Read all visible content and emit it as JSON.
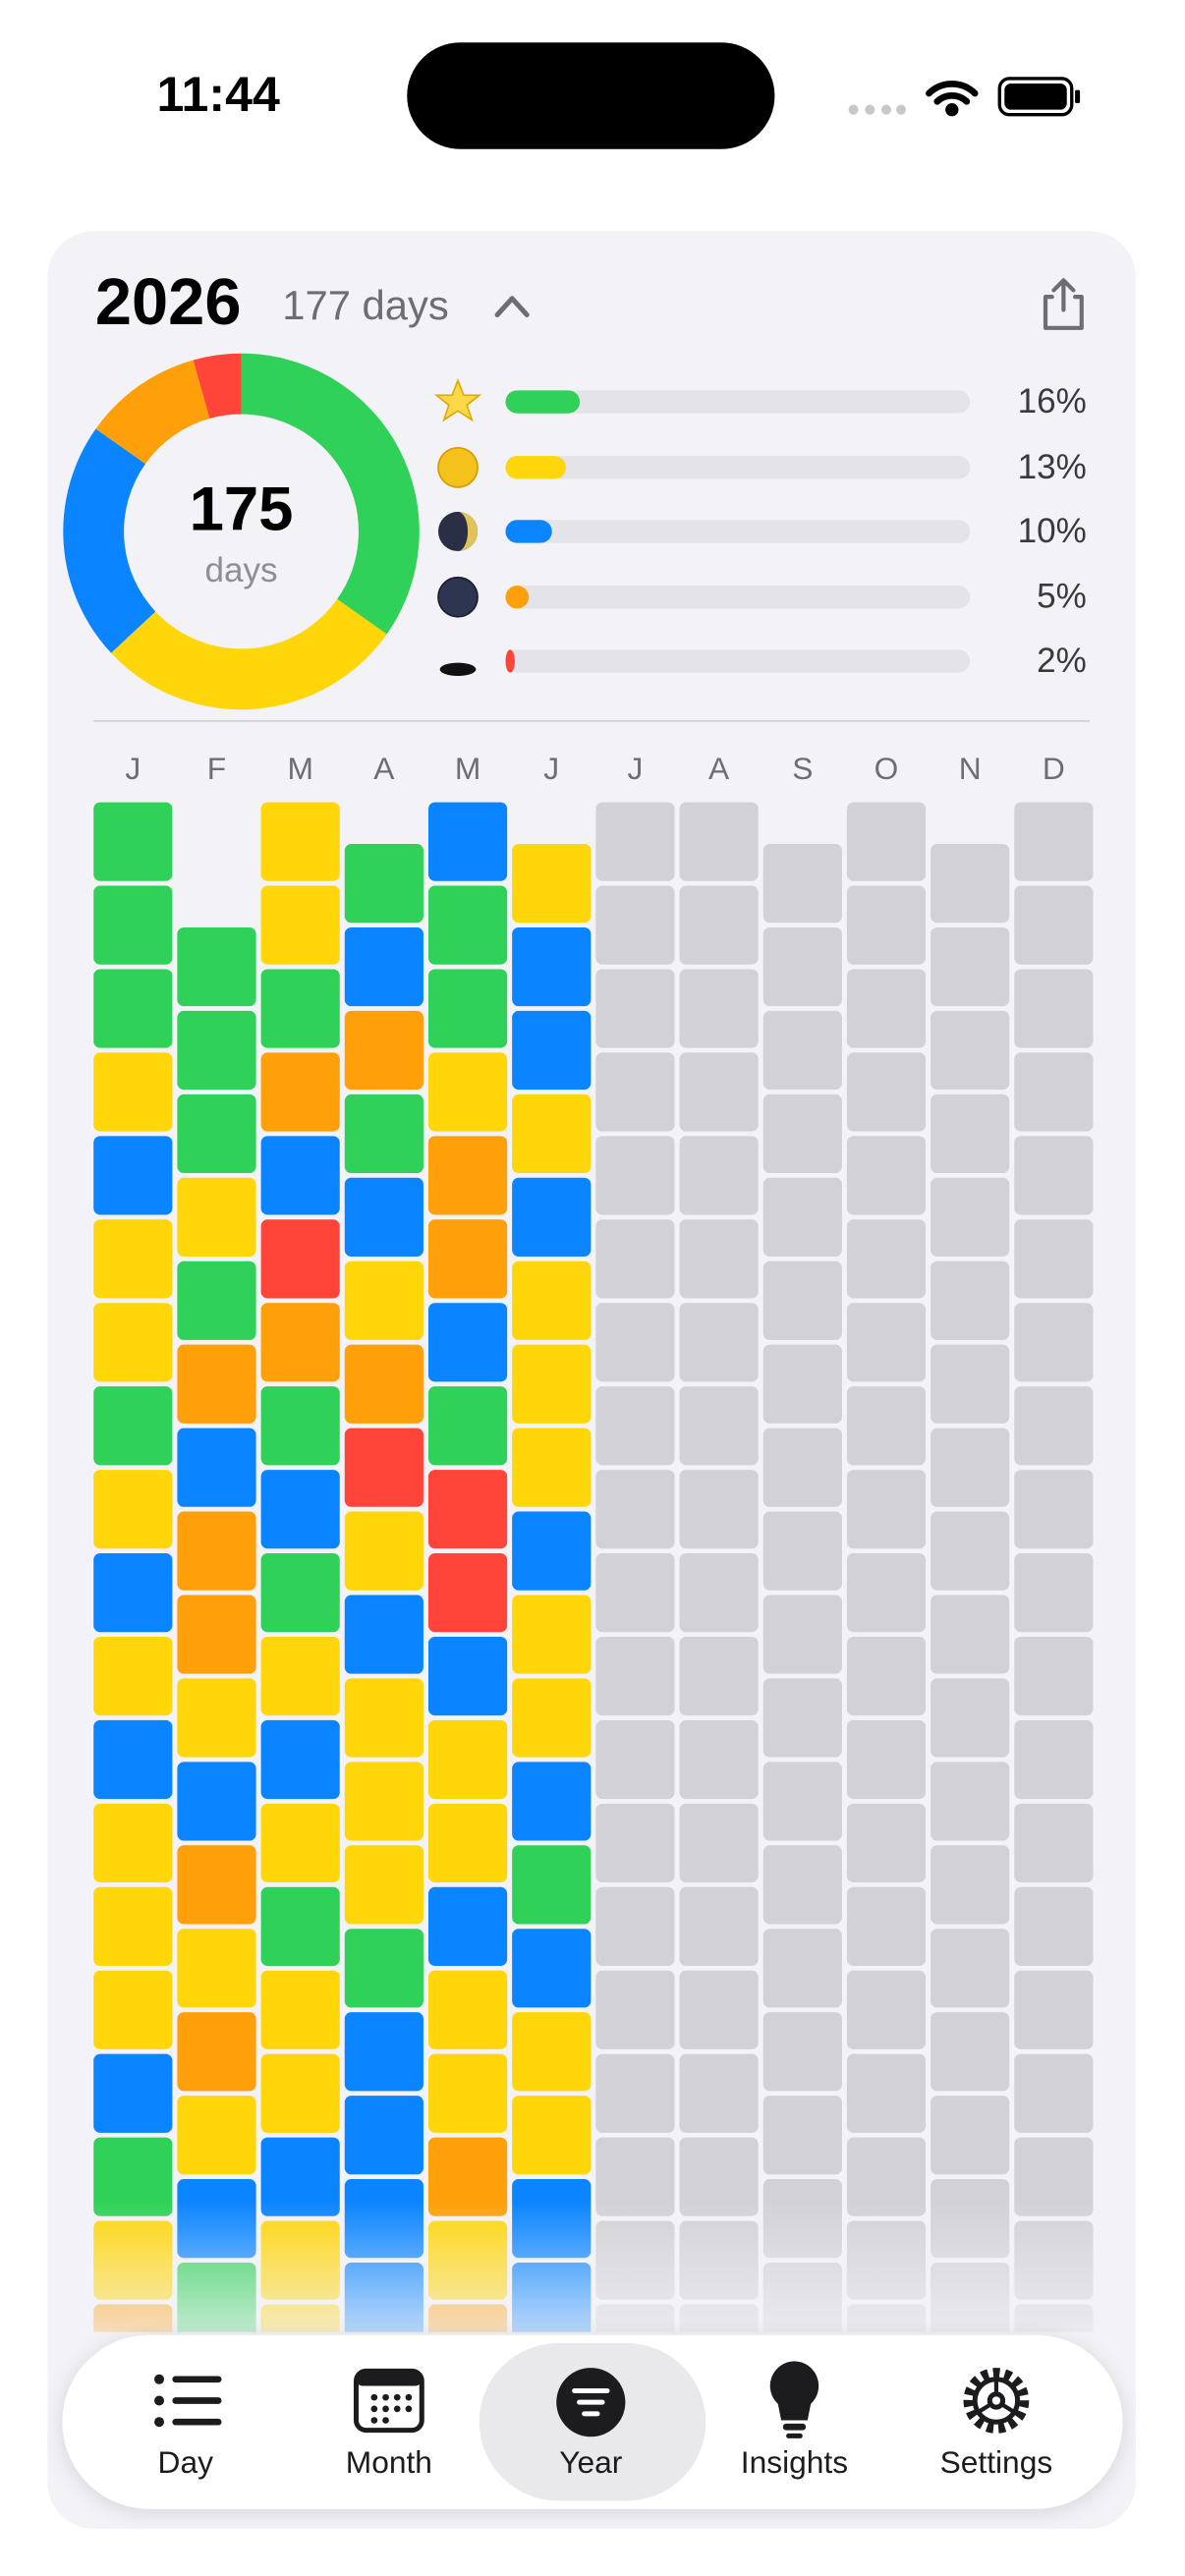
{
  "status_bar": {
    "time": "11:44"
  },
  "header": {
    "year": "2026",
    "days": "177 days"
  },
  "summary": {
    "count": "175",
    "unit": "days"
  },
  "moods": {
    "xlim": [
      0,
      100
    ],
    "rows": [
      {
        "color": "#30d158",
        "value": 16,
        "label": "16%"
      },
      {
        "color": "#ffd60a",
        "value": 13,
        "label": "13%"
      },
      {
        "color": "#0a84ff",
        "value": 10,
        "label": "10%"
      },
      {
        "color": "#ff9f0a",
        "value": 5,
        "label": "5%"
      },
      {
        "color": "#ff453a",
        "value": 2,
        "label": "2%"
      }
    ]
  },
  "calendar": {
    "colors": {
      "g": "#30d158",
      "y": "#ffd60a",
      "b": "#0a84ff",
      "o": "#ff9f0a",
      "r": "#ff453a",
      "empty": "#d1d1d6"
    },
    "months": [
      {
        "label": "J",
        "cells": [
          "g",
          "g",
          "g",
          "y",
          "b",
          "y",
          "y",
          "g",
          "y",
          "b",
          "y",
          "b",
          "y",
          "y",
          "y",
          "b",
          "g",
          "y",
          "o"
        ]
      },
      {
        "label": "F",
        "cells": [
          "g",
          "g",
          "g",
          "y",
          "g",
          "o",
          "b",
          "o",
          "o",
          "y",
          "b",
          "o",
          "y",
          "o",
          "y",
          "b",
          "g"
        ]
      },
      {
        "label": "M",
        "cells": [
          "y",
          "y",
          "g",
          "o",
          "b",
          "r",
          "o",
          "g",
          "b",
          "g",
          "y",
          "b",
          "y",
          "g",
          "y",
          "y",
          "b",
          "y",
          "y"
        ]
      },
      {
        "label": "A",
        "cells": [
          "g",
          "b",
          "o",
          "g",
          "b",
          "y",
          "o",
          "r",
          "y",
          "b",
          "y",
          "y",
          "y",
          "g",
          "b",
          "b",
          "b",
          "b"
        ]
      },
      {
        "label": "M",
        "cells": [
          "b",
          "g",
          "g",
          "y",
          "o",
          "o",
          "b",
          "g",
          "r",
          "r",
          "b",
          "y",
          "y",
          "b",
          "y",
          "y",
          "o",
          "y",
          "o"
        ]
      },
      {
        "label": "J",
        "cells": [
          "y",
          "b",
          "b",
          "y",
          "b",
          "y",
          "y",
          "y",
          "b",
          "y",
          "y",
          "b",
          "g",
          "b",
          "y",
          "y",
          "b",
          "b"
        ]
      },
      {
        "label": "J",
        "cells": []
      },
      {
        "label": "A",
        "cells": []
      },
      {
        "label": "S",
        "cells": []
      },
      {
        "label": "O",
        "cells": []
      },
      {
        "label": "N",
        "cells": []
      },
      {
        "label": "D",
        "cells": []
      }
    ]
  },
  "tabs": [
    {
      "label": "Day"
    },
    {
      "label": "Month"
    },
    {
      "label": "Year"
    },
    {
      "label": "Insights"
    },
    {
      "label": "Settings"
    }
  ]
}
